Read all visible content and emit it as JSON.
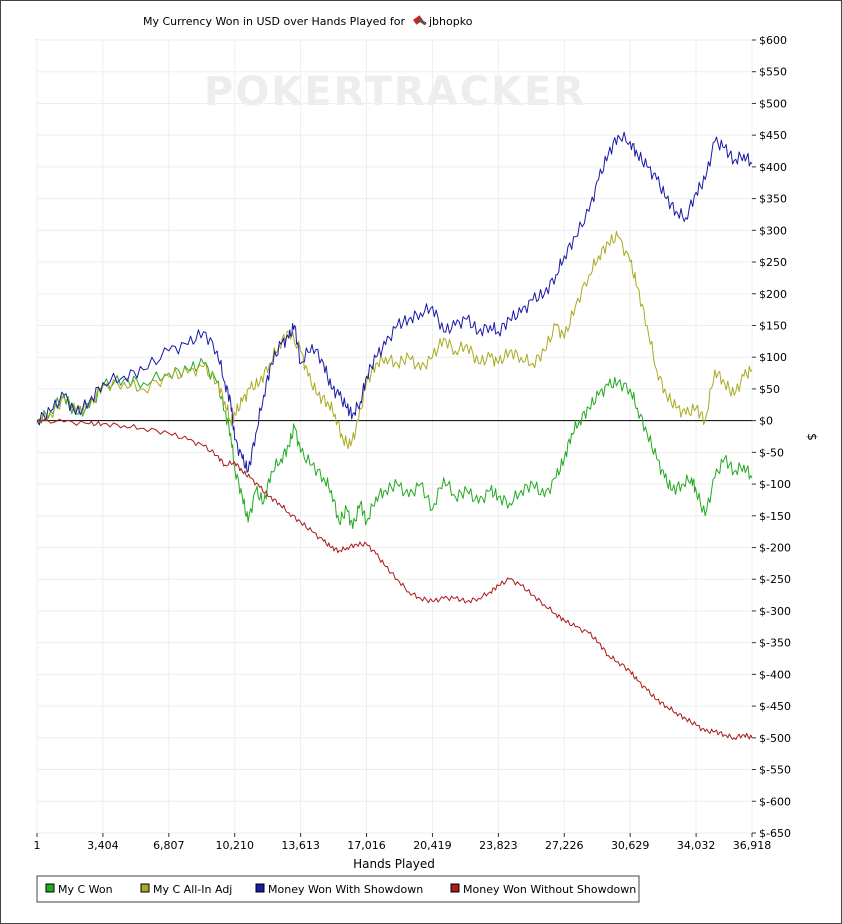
{
  "chart_data": {
    "type": "line",
    "title": "My Currency Won in USD over Hands Played for",
    "player": "jbhopko",
    "watermark": "POKERTRACKER",
    "xlabel": "Hands Played",
    "ylabel": "$",
    "xlim": [
      1,
      36918
    ],
    "ylim": [
      -650,
      600
    ],
    "x_ticks": [
      1,
      3404,
      6807,
      10210,
      13613,
      17016,
      20419,
      23823,
      27226,
      30629,
      34032,
      36918
    ],
    "x_tick_labels": [
      "1",
      "3,404",
      "6,807",
      "10,210",
      "13,613",
      "17,016",
      "20,419",
      "23,823",
      "27,226",
      "30,629",
      "34,032",
      "36,918"
    ],
    "y_ticks": [
      600,
      550,
      500,
      450,
      400,
      350,
      300,
      250,
      200,
      150,
      100,
      50,
      0,
      -50,
      -100,
      -150,
      -200,
      -250,
      -300,
      -350,
      -400,
      -450,
      -500,
      -550,
      -600,
      -650
    ],
    "y_tick_labels": [
      "$600",
      "$550",
      "$500",
      "$450",
      "$400",
      "$350",
      "$300",
      "$250",
      "$200",
      "$150",
      "$100",
      "$50",
      "$0",
      "$-50",
      "$-100",
      "$-150",
      "$-200",
      "$-250",
      "$-300",
      "$-350",
      "$-400",
      "$-450",
      "$-500",
      "$-550",
      "$-600",
      "$-650"
    ],
    "grid": true,
    "legend_position": "bottom-left",
    "series": [
      {
        "name": "My C Won",
        "color": "#22aa22",
        "points": [
          [
            1,
            0
          ],
          [
            700,
            15
          ],
          [
            1400,
            40
          ],
          [
            2000,
            10
          ],
          [
            2700,
            20
          ],
          [
            3404,
            55
          ],
          [
            4500,
            65
          ],
          [
            5500,
            60
          ],
          [
            6807,
            75
          ],
          [
            7800,
            80
          ],
          [
            8600,
            90
          ],
          [
            9300,
            60
          ],
          [
            9700,
            15
          ],
          [
            10000,
            -20
          ],
          [
            10210,
            -75
          ],
          [
            10600,
            -120
          ],
          [
            10900,
            -160
          ],
          [
            11300,
            -110
          ],
          [
            11700,
            -130
          ],
          [
            12100,
            -80
          ],
          [
            12600,
            -60
          ],
          [
            13000,
            -40
          ],
          [
            13300,
            -10
          ],
          [
            13613,
            -50
          ],
          [
            14200,
            -70
          ],
          [
            14800,
            -90
          ],
          [
            15200,
            -110
          ],
          [
            15600,
            -160
          ],
          [
            16000,
            -140
          ],
          [
            16300,
            -170
          ],
          [
            16700,
            -130
          ],
          [
            17016,
            -160
          ],
          [
            17500,
            -120
          ],
          [
            18000,
            -110
          ],
          [
            18600,
            -100
          ],
          [
            19200,
            -120
          ],
          [
            19800,
            -100
          ],
          [
            20419,
            -140
          ],
          [
            21000,
            -90
          ],
          [
            21600,
            -120
          ],
          [
            22200,
            -110
          ],
          [
            22800,
            -130
          ],
          [
            23400,
            -110
          ],
          [
            23823,
            -120
          ],
          [
            24400,
            -130
          ],
          [
            25000,
            -110
          ],
          [
            25600,
            -100
          ],
          [
            26200,
            -120
          ],
          [
            26800,
            -90
          ],
          [
            27226,
            -60
          ],
          [
            27600,
            -20
          ],
          [
            28000,
            0
          ],
          [
            28500,
            20
          ],
          [
            29000,
            40
          ],
          [
            29500,
            55
          ],
          [
            30000,
            60
          ],
          [
            30629,
            50
          ],
          [
            31000,
            20
          ],
          [
            31500,
            -20
          ],
          [
            32000,
            -60
          ],
          [
            32400,
            -90
          ],
          [
            32800,
            -110
          ],
          [
            33300,
            -100
          ],
          [
            33800,
            -90
          ],
          [
            34032,
            -110
          ],
          [
            34500,
            -150
          ],
          [
            35000,
            -90
          ],
          [
            35500,
            -60
          ],
          [
            36000,
            -80
          ],
          [
            36500,
            -70
          ],
          [
            36918,
            -90
          ]
        ]
      },
      {
        "name": "My C All-In Adj",
        "color": "#aaaa22",
        "points": [
          [
            1,
            0
          ],
          [
            700,
            10
          ],
          [
            1400,
            35
          ],
          [
            2000,
            15
          ],
          [
            2700,
            25
          ],
          [
            3404,
            55
          ],
          [
            4500,
            60
          ],
          [
            5500,
            50
          ],
          [
            6807,
            70
          ],
          [
            7800,
            75
          ],
          [
            8600,
            85
          ],
          [
            9300,
            60
          ],
          [
            9700,
            30
          ],
          [
            10000,
            0
          ],
          [
            10210,
            10
          ],
          [
            10600,
            30
          ],
          [
            11000,
            50
          ],
          [
            11500,
            60
          ],
          [
            12000,
            90
          ],
          [
            12500,
            120
          ],
          [
            13000,
            140
          ],
          [
            13613,
            110
          ],
          [
            14000,
            70
          ],
          [
            14500,
            40
          ],
          [
            15000,
            30
          ],
          [
            15400,
            10
          ],
          [
            15800,
            -30
          ],
          [
            16200,
            -40
          ],
          [
            16600,
            0
          ],
          [
            17016,
            60
          ],
          [
            17500,
            90
          ],
          [
            18000,
            100
          ],
          [
            18600,
            90
          ],
          [
            19200,
            100
          ],
          [
            19800,
            80
          ],
          [
            20419,
            100
          ],
          [
            21000,
            130
          ],
          [
            21600,
            110
          ],
          [
            22200,
            120
          ],
          [
            22800,
            90
          ],
          [
            23400,
            100
          ],
          [
            23823,
            90
          ],
          [
            24400,
            110
          ],
          [
            25000,
            100
          ],
          [
            25600,
            90
          ],
          [
            26200,
            110
          ],
          [
            26800,
            150
          ],
          [
            27226,
            130
          ],
          [
            27800,
            180
          ],
          [
            28500,
            230
          ],
          [
            29000,
            260
          ],
          [
            29500,
            280
          ],
          [
            30000,
            290
          ],
          [
            30629,
            250
          ],
          [
            31000,
            210
          ],
          [
            31500,
            150
          ],
          [
            32000,
            80
          ],
          [
            32500,
            40
          ],
          [
            33000,
            20
          ],
          [
            33500,
            10
          ],
          [
            34032,
            20
          ],
          [
            34500,
            0
          ],
          [
            35000,
            80
          ],
          [
            35500,
            60
          ],
          [
            36000,
            40
          ],
          [
            36500,
            70
          ],
          [
            36918,
            80
          ]
        ]
      },
      {
        "name": "Money Won With Showdown",
        "color": "#1a1aa6",
        "points": [
          [
            1,
            0
          ],
          [
            700,
            15
          ],
          [
            1400,
            40
          ],
          [
            2000,
            10
          ],
          [
            2700,
            30
          ],
          [
            3404,
            60
          ],
          [
            4500,
            70
          ],
          [
            5500,
            80
          ],
          [
            6807,
            110
          ],
          [
            7800,
            120
          ],
          [
            8600,
            140
          ],
          [
            9300,
            110
          ],
          [
            9700,
            60
          ],
          [
            10000,
            30
          ],
          [
            10210,
            -30
          ],
          [
            10600,
            -60
          ],
          [
            10900,
            -80
          ],
          [
            11300,
            -20
          ],
          [
            11700,
            40
          ],
          [
            12100,
            90
          ],
          [
            12600,
            120
          ],
          [
            13000,
            130
          ],
          [
            13300,
            150
          ],
          [
            13613,
            90
          ],
          [
            14200,
            120
          ],
          [
            14800,
            90
          ],
          [
            15200,
            50
          ],
          [
            15600,
            40
          ],
          [
            16000,
            20
          ],
          [
            16300,
            10
          ],
          [
            16700,
            30
          ],
          [
            17016,
            70
          ],
          [
            17500,
            100
          ],
          [
            18000,
            120
          ],
          [
            18600,
            150
          ],
          [
            19200,
            160
          ],
          [
            19800,
            170
          ],
          [
            20419,
            180
          ],
          [
            21000,
            140
          ],
          [
            21600,
            150
          ],
          [
            22200,
            160
          ],
          [
            22800,
            140
          ],
          [
            23400,
            150
          ],
          [
            23823,
            140
          ],
          [
            24400,
            160
          ],
          [
            25000,
            170
          ],
          [
            25600,
            190
          ],
          [
            26200,
            200
          ],
          [
            26800,
            230
          ],
          [
            27226,
            260
          ],
          [
            27800,
            290
          ],
          [
            28500,
            330
          ],
          [
            29000,
            380
          ],
          [
            29500,
            420
          ],
          [
            30000,
            450
          ],
          [
            30629,
            440
          ],
          [
            31000,
            420
          ],
          [
            31500,
            400
          ],
          [
            32000,
            380
          ],
          [
            32500,
            350
          ],
          [
            33000,
            330
          ],
          [
            33500,
            320
          ],
          [
            34032,
            360
          ],
          [
            34500,
            380
          ],
          [
            35000,
            440
          ],
          [
            35500,
            430
          ],
          [
            36000,
            410
          ],
          [
            36500,
            420
          ],
          [
            36918,
            405
          ]
        ]
      },
      {
        "name": "Money Won Without Showdown",
        "color": "#aa1a1a",
        "points": [
          [
            1,
            0
          ],
          [
            1400,
            -2
          ],
          [
            2700,
            -5
          ],
          [
            3404,
            -5
          ],
          [
            4500,
            -8
          ],
          [
            5500,
            -12
          ],
          [
            6807,
            -20
          ],
          [
            7800,
            -30
          ],
          [
            8600,
            -40
          ],
          [
            9300,
            -55
          ],
          [
            9700,
            -70
          ],
          [
            10210,
            -65
          ],
          [
            10600,
            -80
          ],
          [
            11000,
            -90
          ],
          [
            11500,
            -105
          ],
          [
            12000,
            -120
          ],
          [
            12500,
            -130
          ],
          [
            13000,
            -145
          ],
          [
            13613,
            -160
          ],
          [
            14200,
            -175
          ],
          [
            14800,
            -190
          ],
          [
            15200,
            -200
          ],
          [
            15600,
            -205
          ],
          [
            16000,
            -200
          ],
          [
            16500,
            -195
          ],
          [
            17016,
            -195
          ],
          [
            17500,
            -210
          ],
          [
            18000,
            -230
          ],
          [
            18600,
            -250
          ],
          [
            19200,
            -270
          ],
          [
            19800,
            -280
          ],
          [
            20419,
            -285
          ],
          [
            21000,
            -280
          ],
          [
            21600,
            -280
          ],
          [
            22200,
            -285
          ],
          [
            22800,
            -280
          ],
          [
            23400,
            -270
          ],
          [
            23823,
            -260
          ],
          [
            24400,
            -250
          ],
          [
            25000,
            -260
          ],
          [
            25600,
            -275
          ],
          [
            26200,
            -290
          ],
          [
            26800,
            -305
          ],
          [
            27226,
            -315
          ],
          [
            27800,
            -325
          ],
          [
            28500,
            -335
          ],
          [
            29000,
            -350
          ],
          [
            29500,
            -370
          ],
          [
            30000,
            -380
          ],
          [
            30629,
            -395
          ],
          [
            31000,
            -410
          ],
          [
            31500,
            -425
          ],
          [
            32000,
            -440
          ],
          [
            32500,
            -450
          ],
          [
            33000,
            -460
          ],
          [
            33500,
            -470
          ],
          [
            34032,
            -480
          ],
          [
            34500,
            -490
          ],
          [
            35000,
            -490
          ],
          [
            35500,
            -495
          ],
          [
            36000,
            -500
          ],
          [
            36500,
            -495
          ],
          [
            36918,
            -500
          ]
        ]
      }
    ]
  }
}
